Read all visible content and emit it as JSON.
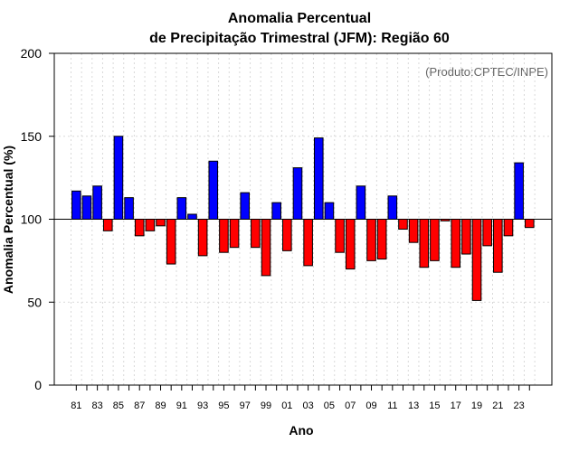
{
  "chart_data": {
    "type": "bar",
    "title_line1": "Anomalia Percentual",
    "title_line2": "de Precipitação Trimestral (JFM): Região 60",
    "xlabel": "Ano",
    "ylabel": "Anomalia Percentual (%)",
    "credit": "(Produto:CPTEC/INPE)",
    "baseline": 100,
    "ylim": [
      0,
      200
    ],
    "yticks": [
      0,
      50,
      100,
      150,
      200
    ],
    "xtick_labels": [
      "81",
      "83",
      "85",
      "87",
      "89",
      "91",
      "93",
      "95",
      "97",
      "99",
      "01",
      "03",
      "05",
      "07",
      "09",
      "11",
      "13",
      "15",
      "17",
      "19",
      "21",
      "23"
    ],
    "categories": [
      "1981",
      "1982",
      "1983",
      "1984",
      "1985",
      "1986",
      "1987",
      "1988",
      "1989",
      "1990",
      "1991",
      "1992",
      "1993",
      "1994",
      "1995",
      "1996",
      "1997",
      "1998",
      "1999",
      "2000",
      "2001",
      "2002",
      "2003",
      "2004",
      "2005",
      "2006",
      "2007",
      "2008",
      "2009",
      "2010",
      "2011",
      "2012",
      "2013",
      "2014",
      "2015",
      "2016",
      "2017",
      "2018",
      "2019",
      "2020",
      "2021",
      "2022",
      "2023",
      "2024"
    ],
    "values": [
      117,
      114,
      120,
      93,
      150,
      113,
      90,
      93,
      96,
      73,
      113,
      103,
      78,
      135,
      80,
      83,
      116,
      83,
      66,
      110,
      81,
      131,
      72,
      149,
      110,
      80,
      70,
      120,
      75,
      76,
      114,
      94,
      86,
      71,
      75,
      99,
      71,
      79,
      51,
      84,
      68,
      90,
      134,
      95
    ],
    "colors": {
      "positive": "#0000ff",
      "negative": "#ff0000",
      "grid": "#d9d9d9"
    }
  }
}
